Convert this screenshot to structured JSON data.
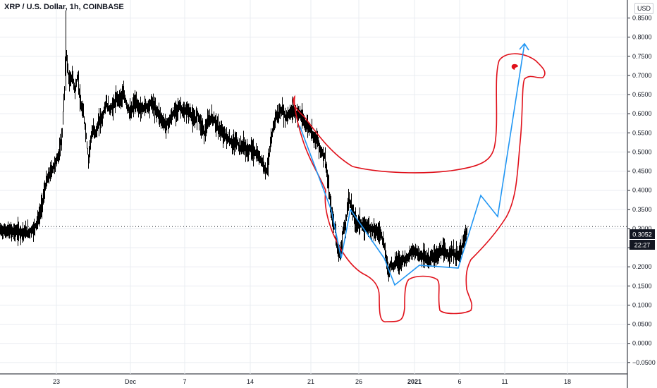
{
  "header": {
    "title": "XRP / U.S. Dollar, 1h, COINBASE",
    "currency_label": "USD"
  },
  "price_axis": {
    "ticks": [
      "0.8500",
      "0.8000",
      "0.7500",
      "0.7000",
      "0.6500",
      "0.6000",
      "0.5500",
      "0.5000",
      "0.4500",
      "0.4000",
      "0.3500",
      "0.3000",
      "0.2500",
      "0.2000",
      "0.1500",
      "0.1000",
      "0.0500",
      "0.0000",
      "−0.0500"
    ],
    "last_price_label": "0.3052",
    "countdown_label": "22:27"
  },
  "time_axis": {
    "ticks": [
      "23",
      "Dec",
      "7",
      "14",
      "21",
      "26",
      "2021",
      "6",
      "11",
      "18"
    ]
  },
  "colors": {
    "candle": "#000000",
    "grid": "#e9ecf1",
    "annotation_red": "#e0101a",
    "annotation_blue": "#2196f3",
    "axis_text": "#131722",
    "price_label_bg": "#131722"
  },
  "chart_data": {
    "type": "line",
    "title": "XRP / U.S. Dollar, 1h, COINBASE",
    "xlabel": "",
    "ylabel": "",
    "ylim": [
      -0.065,
      0.875
    ],
    "grid": true,
    "last_price": 0.3052,
    "series": [
      {
        "name": "XRP / U.S. Dollar",
        "points": [
          [
            0,
            0.295
          ],
          [
            20,
            0.292
          ],
          [
            40,
            0.29
          ],
          [
            48,
            0.3
          ],
          [
            55,
            0.33
          ],
          [
            60,
            0.37
          ],
          [
            65,
            0.42
          ],
          [
            72,
            0.45
          ],
          [
            78,
            0.47
          ],
          [
            84,
            0.5
          ],
          [
            88,
            0.55
          ],
          [
            91,
            0.66
          ],
          [
            93,
            0.78
          ],
          [
            95,
            0.73
          ],
          [
            98,
            0.68
          ],
          [
            102,
            0.7
          ],
          [
            106,
            0.66
          ],
          [
            110,
            0.7
          ],
          [
            114,
            0.62
          ],
          [
            118,
            0.6
          ],
          [
            122,
            0.54
          ],
          [
            125,
            0.48
          ],
          [
            128,
            0.53
          ],
          [
            132,
            0.56
          ],
          [
            136,
            0.55
          ],
          [
            140,
            0.58
          ],
          [
            145,
            0.59
          ],
          [
            150,
            0.63
          ],
          [
            155,
            0.61
          ],
          [
            160,
            0.62
          ],
          [
            165,
            0.64
          ],
          [
            170,
            0.64
          ],
          [
            175,
            0.65
          ],
          [
            180,
            0.62
          ],
          [
            185,
            0.6
          ],
          [
            190,
            0.63
          ],
          [
            195,
            0.62
          ],
          [
            200,
            0.61
          ],
          [
            205,
            0.62
          ],
          [
            210,
            0.62
          ],
          [
            215,
            0.63
          ],
          [
            220,
            0.61
          ],
          [
            225,
            0.6
          ],
          [
            230,
            0.58
          ],
          [
            235,
            0.57
          ],
          [
            240,
            0.58
          ],
          [
            245,
            0.6
          ],
          [
            250,
            0.61
          ],
          [
            255,
            0.62
          ],
          [
            260,
            0.6
          ],
          [
            265,
            0.61
          ],
          [
            270,
            0.6
          ],
          [
            275,
            0.58
          ],
          [
            280,
            0.6
          ],
          [
            285,
            0.57
          ],
          [
            290,
            0.55
          ],
          [
            295,
            0.58
          ],
          [
            300,
            0.59
          ],
          [
            305,
            0.58
          ],
          [
            310,
            0.56
          ],
          [
            315,
            0.55
          ],
          [
            320,
            0.54
          ],
          [
            325,
            0.53
          ],
          [
            330,
            0.52
          ],
          [
            335,
            0.53
          ],
          [
            340,
            0.51
          ],
          [
            345,
            0.52
          ],
          [
            350,
            0.5
          ],
          [
            355,
            0.51
          ],
          [
            360,
            0.5
          ],
          [
            365,
            0.49
          ],
          [
            370,
            0.48
          ],
          [
            375,
            0.46
          ],
          [
            378,
            0.45
          ],
          [
            382,
            0.5
          ],
          [
            386,
            0.55
          ],
          [
            390,
            0.59
          ],
          [
            395,
            0.6
          ],
          [
            400,
            0.61
          ],
          [
            405,
            0.59
          ],
          [
            410,
            0.6
          ],
          [
            415,
            0.61
          ],
          [
            420,
            0.6
          ],
          [
            425,
            0.6
          ],
          [
            430,
            0.58
          ],
          [
            435,
            0.57
          ],
          [
            440,
            0.56
          ],
          [
            445,
            0.54
          ],
          [
            450,
            0.53
          ],
          [
            455,
            0.5
          ],
          [
            460,
            0.49
          ],
          [
            463,
            0.45
          ],
          [
            466,
            0.4
          ],
          [
            469,
            0.35
          ],
          [
            472,
            0.32
          ],
          [
            475,
            0.3
          ],
          [
            478,
            0.25
          ],
          [
            482,
            0.23
          ],
          [
            486,
            0.29
          ],
          [
            490,
            0.31
          ],
          [
            494,
            0.38
          ],
          [
            498,
            0.36
          ],
          [
            502,
            0.33
          ],
          [
            506,
            0.31
          ],
          [
            510,
            0.32
          ],
          [
            515,
            0.3
          ],
          [
            520,
            0.31
          ],
          [
            525,
            0.3
          ],
          [
            530,
            0.3
          ],
          [
            535,
            0.29
          ],
          [
            540,
            0.29
          ],
          [
            545,
            0.25
          ],
          [
            548,
            0.22
          ],
          [
            551,
            0.18
          ],
          [
            554,
            0.21
          ],
          [
            558,
            0.2
          ],
          [
            562,
            0.22
          ],
          [
            566,
            0.21
          ],
          [
            570,
            0.22
          ],
          [
            575,
            0.22
          ],
          [
            580,
            0.23
          ],
          [
            585,
            0.24
          ],
          [
            590,
            0.24
          ],
          [
            595,
            0.23
          ],
          [
            600,
            0.23
          ],
          [
            605,
            0.22
          ],
          [
            610,
            0.22
          ],
          [
            615,
            0.23
          ],
          [
            620,
            0.23
          ],
          [
            625,
            0.24
          ],
          [
            630,
            0.24
          ],
          [
            635,
            0.23
          ],
          [
            640,
            0.24
          ],
          [
            645,
            0.23
          ],
          [
            650,
            0.23
          ],
          [
            655,
            0.25
          ],
          [
            660,
            0.28
          ],
          [
            663,
            0.3
          ]
        ]
      }
    ]
  }
}
